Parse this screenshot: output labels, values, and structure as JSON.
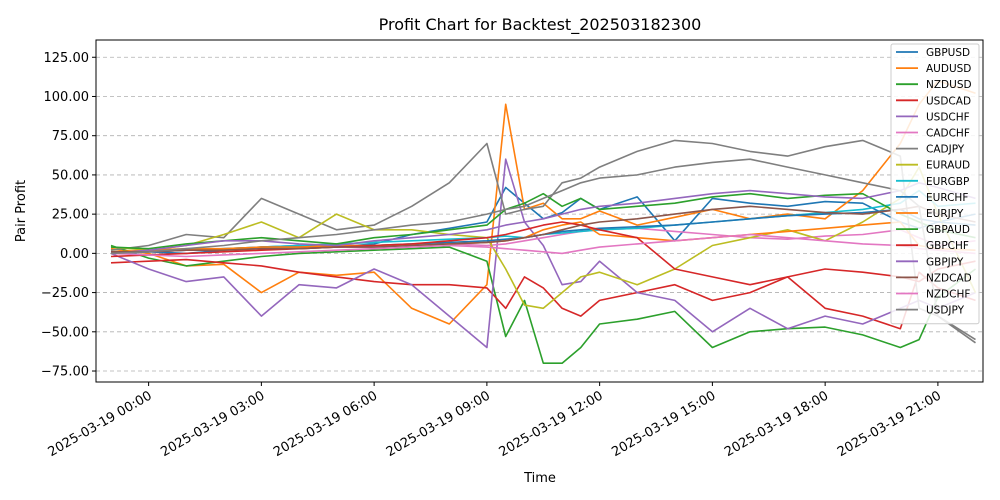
{
  "chart_data": {
    "type": "line",
    "title": "Profit Chart for Backtest_202503182300",
    "xlabel": "Time",
    "ylabel": "Pair Profit",
    "xlim": [
      -0.4,
      23.2
    ],
    "ylim": [
      -82,
      136
    ],
    "grid": "y-dashed",
    "legend_position": "top-right",
    "x_start_label": "2025-03-18 23:00",
    "x_ticks": [
      {
        "hour": 1,
        "label": "2025-03-19 00:00"
      },
      {
        "hour": 4,
        "label": "2025-03-19 03:00"
      },
      {
        "hour": 7,
        "label": "2025-03-19 06:00"
      },
      {
        "hour": 10,
        "label": "2025-03-19 09:00"
      },
      {
        "hour": 13,
        "label": "2025-03-19 12:00"
      },
      {
        "hour": 16,
        "label": "2025-03-19 15:00"
      },
      {
        "hour": 19,
        "label": "2025-03-19 18:00"
      },
      {
        "hour": 22,
        "label": "2025-03-19 21:00"
      }
    ],
    "y_ticks": [
      {
        "value": -75,
        "label": "−75.00"
      },
      {
        "value": -50,
        "label": "−50.00"
      },
      {
        "value": -25,
        "label": "−25.00"
      },
      {
        "value": 0,
        "label": "0.00"
      },
      {
        "value": 25,
        "label": "25.00"
      },
      {
        "value": 50,
        "label": "50.00"
      },
      {
        "value": 75,
        "label": "75.00"
      },
      {
        "value": 100,
        "label": "100.00"
      },
      {
        "value": 125,
        "label": "125.00"
      }
    ],
    "x_hours": [
      0,
      1,
      2,
      3,
      4,
      5,
      6,
      7,
      8,
      9,
      10,
      10.5,
      11,
      11.5,
      12,
      12.5,
      13,
      14,
      15,
      16,
      17,
      18,
      19,
      20,
      21,
      21.5,
      22,
      23
    ],
    "series": [
      {
        "name": "GBPUSD",
        "color": "#1f77b4",
        "values": [
          1,
          1,
          0,
          2,
          4,
          5,
          4,
          6,
          12,
          16,
          20,
          42,
          32,
          22,
          26,
          35,
          28,
          36,
          8,
          35,
          32,
          30,
          33,
          32,
          20,
          16,
          20,
          25
        ]
      },
      {
        "name": "AUDUSD",
        "color": "#ff7f0e",
        "values": [
          3,
          0,
          -8,
          -7,
          -25,
          -12,
          -14,
          -12,
          -35,
          -45,
          -20,
          95,
          28,
          32,
          22,
          22,
          27,
          18,
          23,
          28,
          22,
          25,
          22,
          40,
          70,
          95,
          110,
          102
        ]
      },
      {
        "name": "NZDUSD",
        "color": "#2ca02c",
        "values": [
          5,
          -3,
          -8,
          -5,
          -2,
          0,
          1,
          2,
          3,
          4,
          -5,
          -53,
          -30,
          -70,
          -70,
          -60,
          -45,
          -42,
          -37,
          -60,
          -50,
          -48,
          -47,
          -52,
          -60,
          -55,
          -28,
          -10
        ]
      },
      {
        "name": "USDCAD",
        "color": "#d62728",
        "values": [
          -6,
          -5,
          -4,
          -6,
          -8,
          -12,
          -15,
          -18,
          -20,
          -20,
          -22,
          -35,
          -15,
          -22,
          -35,
          -40,
          -30,
          -25,
          -20,
          -30,
          -25,
          -15,
          -35,
          -40,
          -48,
          -12,
          -22,
          -30
        ]
      },
      {
        "name": "USDCHF",
        "color": "#9467bd",
        "values": [
          0,
          -10,
          -18,
          -15,
          -40,
          -20,
          -22,
          -10,
          -20,
          -40,
          -60,
          60,
          20,
          5,
          -20,
          -18,
          -5,
          -25,
          -30,
          -50,
          -35,
          -48,
          -40,
          -45,
          -35,
          -30,
          -35,
          -25
        ]
      },
      {
        "name": "CADCHF",
        "color": "#e377c2",
        "values": [
          0,
          1,
          2,
          2,
          3,
          3,
          4,
          4,
          5,
          6,
          5,
          6,
          8,
          10,
          12,
          14,
          15,
          16,
          14,
          12,
          10,
          9,
          11,
          12,
          15,
          10,
          5,
          8
        ]
      },
      {
        "name": "CADJPY",
        "color": "#7f7f7f",
        "values": [
          2,
          5,
          12,
          10,
          35,
          25,
          15,
          18,
          30,
          45,
          70,
          25,
          28,
          30,
          45,
          48,
          55,
          65,
          72,
          70,
          65,
          62,
          68,
          72,
          62,
          -35,
          -40,
          -55
        ]
      },
      {
        "name": "EURAUD",
        "color": "#bcbd22",
        "values": [
          4,
          2,
          5,
          12,
          20,
          10,
          25,
          15,
          15,
          12,
          10,
          -10,
          -33,
          -35,
          -25,
          -15,
          -12,
          -20,
          -10,
          5,
          10,
          15,
          8,
          20,
          35,
          55,
          25,
          -25
        ]
      },
      {
        "name": "EURGBP",
        "color": "#17becf",
        "values": [
          0,
          1,
          2,
          3,
          4,
          5,
          6,
          7,
          8,
          9,
          10,
          11,
          10,
          12,
          13,
          14,
          15,
          16,
          18,
          20,
          22,
          24,
          26,
          28,
          32,
          40,
          30,
          32
        ]
      },
      {
        "name": "EURCHF",
        "color": "#1f77b4",
        "values": [
          0,
          1,
          2,
          3,
          4,
          4,
          5,
          5,
          6,
          7,
          8,
          9,
          10,
          12,
          14,
          15,
          16,
          17,
          18,
          20,
          22,
          24,
          25,
          26,
          28,
          22,
          20,
          18
        ]
      },
      {
        "name": "EURJPY",
        "color": "#ff7f0e",
        "values": [
          1,
          2,
          3,
          3,
          4,
          4,
          5,
          5,
          5,
          6,
          7,
          8,
          10,
          15,
          18,
          20,
          12,
          10,
          8,
          10,
          12,
          14,
          16,
          18,
          20,
          5,
          3,
          2
        ]
      },
      {
        "name": "GBPAUD",
        "color": "#2ca02c",
        "values": [
          4,
          3,
          6,
          8,
          10,
          8,
          6,
          10,
          12,
          15,
          18,
          28,
          32,
          38,
          30,
          35,
          28,
          30,
          32,
          36,
          38,
          35,
          37,
          38,
          25,
          20,
          15,
          10
        ]
      },
      {
        "name": "GBPCHF",
        "color": "#d62728",
        "values": [
          -2,
          -1,
          0,
          1,
          2,
          3,
          4,
          5,
          6,
          8,
          10,
          12,
          15,
          18,
          20,
          18,
          15,
          10,
          -10,
          -15,
          -20,
          -15,
          -10,
          -12,
          -15,
          -18,
          -10,
          -5
        ]
      },
      {
        "name": "GBPJPY",
        "color": "#9467bd",
        "values": [
          0,
          2,
          5,
          8,
          8,
          6,
          5,
          8,
          10,
          12,
          15,
          18,
          20,
          22,
          25,
          28,
          30,
          32,
          35,
          38,
          40,
          38,
          36,
          35,
          40,
          45,
          42,
          35
        ]
      },
      {
        "name": "NZDCAD",
        "color": "#8c564b",
        "values": [
          1,
          1,
          2,
          2,
          3,
          3,
          4,
          4,
          5,
          6,
          7,
          8,
          10,
          12,
          15,
          18,
          20,
          22,
          25,
          28,
          30,
          28,
          26,
          25,
          28,
          30,
          25,
          20
        ]
      },
      {
        "name": "NZDCHF",
        "color": "#e377c2",
        "values": [
          0,
          -1,
          -2,
          -1,
          0,
          1,
          2,
          3,
          4,
          5,
          4,
          3,
          2,
          1,
          0,
          2,
          4,
          6,
          8,
          10,
          12,
          10,
          8,
          6,
          5,
          3,
          2,
          0
        ]
      },
      {
        "name": "USDJPY",
        "color": "#7f7f7f",
        "values": [
          0,
          1,
          3,
          5,
          8,
          10,
          12,
          15,
          18,
          20,
          25,
          28,
          30,
          35,
          40,
          45,
          48,
          50,
          55,
          58,
          60,
          55,
          50,
          45,
          40,
          30,
          -40,
          -57
        ]
      }
    ]
  }
}
